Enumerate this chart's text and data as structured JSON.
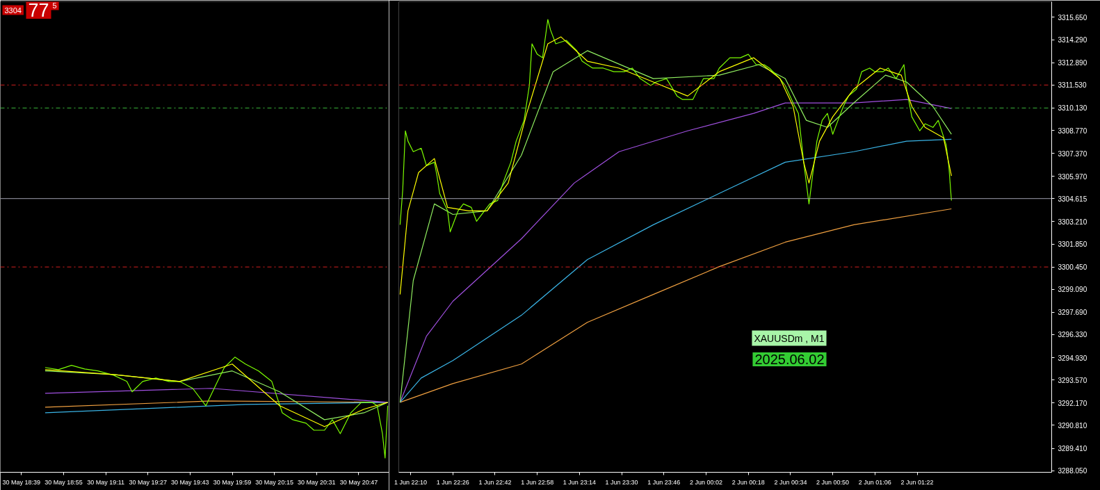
{
  "chart_data": [
    {
      "type": "line",
      "tick_labels": "x",
      "annotations": [
        "3304",
        "77",
        "5"
      ],
      "xlim": [
        "2025-05-30T18:31",
        "2025-05-30T20:58:30"
      ],
      "ylim": [
        3287.95,
        3316.6
      ],
      "xticks": [
        {
          "value": "2025-05-30T18:39",
          "label": "30 May 18:39"
        },
        {
          "value": "2025-05-30T18:55",
          "label": "30 May 18:55"
        },
        {
          "value": "2025-05-30T19:11",
          "label": "30 May 19:11"
        },
        {
          "value": "2025-05-30T19:27",
          "label": "30 May 19:27"
        },
        {
          "value": "2025-05-30T19:43",
          "label": "30 May 19:43"
        },
        {
          "value": "2025-05-30T19:59",
          "label": "30 May 19:59"
        },
        {
          "value": "2025-05-30T20:15",
          "label": "30 May 20:15"
        },
        {
          "value": "2025-05-30T20:31",
          "label": "30 May 20:31"
        },
        {
          "value": "2025-05-30T20:47",
          "label": "30 May 20:47"
        }
      ],
      "ref_lines": [
        {
          "axis": "y",
          "value": 3311.53,
          "color": "#d42020",
          "line_style": "dashdot"
        },
        {
          "axis": "y",
          "value": 3310.13,
          "color": "#3cb83c",
          "line_style": "dashdot"
        },
        {
          "axis": "y",
          "value": 3300.45,
          "color": "#d42020",
          "line_style": "dashdot"
        },
        {
          "axis": "y",
          "value": 3304.615,
          "color": "#a0a0b0",
          "line_style": "solid"
        }
      ],
      "line_style": "solid",
      "marker": "none",
      "series": [
        {
          "color": "#f0a040",
          "x": [
            "2025-05-30T18:48",
            "2025-05-30T19:51",
            "2025-05-30T20:58"
          ],
          "values": [
            3291.91,
            3292.29,
            3292.21
          ]
        },
        {
          "color": "#3ab4e6",
          "x": [
            "2025-05-30T18:48",
            "2025-05-30T20:04",
            "2025-05-30T20:58"
          ],
          "values": [
            3291.57,
            3292.08,
            3292.21
          ]
        },
        {
          "color": "#a050e0",
          "x": [
            "2025-05-30T18:48",
            "2025-05-30T19:51",
            "2025-05-30T20:58"
          ],
          "values": [
            3292.76,
            3293.06,
            3292.21
          ]
        },
        {
          "color": "#90ee60",
          "x": [
            "2025-05-30T18:48",
            "2025-05-30T19:14",
            "2025-05-30T19:39",
            "2025-05-30T19:59",
            "2025-05-30T20:17",
            "2025-05-30T20:34",
            "2025-05-30T20:49",
            "2025-05-30T20:58"
          ],
          "values": [
            3294.12,
            3293.9,
            3293.48,
            3294.12,
            3292.85,
            3291.15,
            3291.57,
            3292.21
          ]
        },
        {
          "color": "#7cfc00",
          "x": [
            "2025-05-30T18:48",
            "2025-05-30T18:53",
            "2025-05-30T18:58",
            "2025-05-30T19:03",
            "2025-05-30T19:08",
            "2025-05-30T19:14",
            "2025-05-30T19:19",
            "2025-05-30T19:21",
            "2025-05-30T19:25",
            "2025-05-30T19:30",
            "2025-05-30T19:35",
            "2025-05-30T19:39",
            "2025-05-30T19:44",
            "2025-05-30T19:49",
            "2025-05-30T19:53",
            "2025-05-30T19:56",
            "2025-05-30T20:00",
            "2025-05-30T20:04",
            "2025-05-30T20:09",
            "2025-05-30T20:14",
            "2025-05-30T20:18",
            "2025-05-30T20:22",
            "2025-05-30T20:27",
            "2025-05-30T20:30",
            "2025-05-30T20:34",
            "2025-05-30T20:37",
            "2025-05-30T20:40",
            "2025-05-30T20:44",
            "2025-05-30T20:48",
            "2025-05-30T20:52",
            "2025-05-30T20:54",
            "2025-05-30T20:56",
            "2025-05-30T20:57",
            "2025-05-30T20:58"
          ],
          "values": [
            3294.33,
            3294.2,
            3294.46,
            3294.24,
            3294.12,
            3293.86,
            3293.48,
            3292.85,
            3293.48,
            3293.69,
            3293.48,
            3293.48,
            3293.06,
            3292.0,
            3293.35,
            3294.33,
            3294.96,
            3294.54,
            3294.12,
            3293.48,
            3291.57,
            3291.15,
            3290.94,
            3290.51,
            3290.51,
            3291.15,
            3290.3,
            3291.57,
            3292.21,
            3292.21,
            3292.0,
            3290.3,
            3288.82,
            3292.0
          ]
        },
        {
          "color": "#ffff00",
          "x": [
            "2025-05-30T18:48",
            "2025-05-30T19:14",
            "2025-05-30T19:39",
            "2025-05-30T19:59",
            "2025-05-30T20:17",
            "2025-05-30T20:34",
            "2025-05-30T20:49",
            "2025-05-30T20:58"
          ],
          "values": [
            3294.2,
            3293.9,
            3293.48,
            3294.54,
            3292.0,
            3290.73,
            3291.79,
            3292.21
          ]
        }
      ]
    },
    {
      "type": "line",
      "annotations": [
        "XAUUSDm , M1",
        "2025.06.02"
      ],
      "xlim": [
        "2025-06-01T22:05:30",
        "2025-06-02T02:13"
      ],
      "ylim": [
        3287.95,
        3316.6
      ],
      "xticks": [
        {
          "value": "2025-06-01T22:10",
          "label": "1 Jun 22:10"
        },
        {
          "value": "2025-06-01T22:26",
          "label": "1 Jun 22:26"
        },
        {
          "value": "2025-06-01T22:42",
          "label": "1 Jun 22:42"
        },
        {
          "value": "2025-06-01T22:58",
          "label": "1 Jun 22:58"
        },
        {
          "value": "2025-06-01T23:14",
          "label": "1 Jun 23:14"
        },
        {
          "value": "2025-06-01T23:30",
          "label": "1 Jun 23:30"
        },
        {
          "value": "2025-06-01T23:46",
          "label": "1 Jun 23:46"
        },
        {
          "value": "2025-06-02T00:02",
          "label": "2 Jun 00:02"
        },
        {
          "value": "2025-06-02T00:18",
          "label": "2 Jun 00:18"
        },
        {
          "value": "2025-06-02T00:34",
          "label": "2 Jun 00:34"
        },
        {
          "value": "2025-06-02T00:50",
          "label": "2 Jun 00:50"
        },
        {
          "value": "2025-06-02T01:06",
          "label": "2 Jun 01:06"
        },
        {
          "value": "2025-06-02T01:22",
          "label": "2 Jun 01:22"
        }
      ],
      "yticks": [
        {
          "value": 3315.65,
          "label": "3315.650"
        },
        {
          "value": 3314.29,
          "label": "3314.290"
        },
        {
          "value": 3312.89,
          "label": "3312.890"
        },
        {
          "value": 3311.53,
          "label": "3311.530"
        },
        {
          "value": 3310.13,
          "label": "3310.130"
        },
        {
          "value": 3308.77,
          "label": "3308.770"
        },
        {
          "value": 3307.37,
          "label": "3307.370"
        },
        {
          "value": 3305.97,
          "label": "3305.970"
        },
        {
          "value": 3303.21,
          "label": "3303.210"
        },
        {
          "value": 3301.85,
          "label": "3301.850"
        },
        {
          "value": 3300.45,
          "label": "3300.450"
        },
        {
          "value": 3299.09,
          "label": "3299.090"
        },
        {
          "value": 3297.69,
          "label": "3297.690"
        },
        {
          "value": 3296.33,
          "label": "3296.330"
        },
        {
          "value": 3294.93,
          "label": "3294.930"
        },
        {
          "value": 3293.57,
          "label": "3293.570"
        },
        {
          "value": 3292.17,
          "label": "3292.170"
        },
        {
          "value": 3290.81,
          "label": "3290.810"
        },
        {
          "value": 3289.41,
          "label": "3289.410"
        },
        {
          "value": 3288.05,
          "label": "3288.050"
        }
      ],
      "ref_lines": [
        {
          "axis": "y",
          "value": 3311.53,
          "color": "#d42020",
          "line_style": "dashdot"
        },
        {
          "axis": "y",
          "value": 3310.13,
          "color": "#3cb83c",
          "line_style": "dashdot"
        },
        {
          "axis": "y",
          "value": 3300.45,
          "color": "#d42020",
          "line_style": "dashdot"
        },
        {
          "axis": "y",
          "value": 3304.615,
          "label": "3304.615",
          "color": "#a0a0b0",
          "line_style": "solid"
        }
      ],
      "line_style": "solid",
      "marker": "none",
      "series": [
        {
          "color": "#f0a040",
          "x": [
            "2025-06-01T22:06",
            "2025-06-01T22:26",
            "2025-06-01T22:52",
            "2025-06-01T23:17",
            "2025-06-01T23:42",
            "2025-06-02T00:07",
            "2025-06-02T00:32",
            "2025-06-02T00:58",
            "2025-06-02T01:35"
          ],
          "values": [
            3292.21,
            3293.35,
            3294.54,
            3297.08,
            3298.78,
            3300.47,
            3301.96,
            3303.02,
            3303.99
          ]
        },
        {
          "color": "#3ab4e6",
          "x": [
            "2025-06-01T22:06",
            "2025-06-01T22:14",
            "2025-06-01T22:26",
            "2025-06-01T22:52",
            "2025-06-01T23:17",
            "2025-06-01T23:42",
            "2025-06-02T00:07",
            "2025-06-02T00:32",
            "2025-06-02T00:58",
            "2025-06-02T01:18",
            "2025-06-02T01:35"
          ],
          "values": [
            3292.21,
            3293.69,
            3294.75,
            3297.51,
            3300.9,
            3303.02,
            3304.93,
            3306.83,
            3307.47,
            3308.11,
            3308.23
          ]
        },
        {
          "color": "#a050e0",
          "x": [
            "2025-06-01T22:06",
            "2025-06-01T22:16",
            "2025-06-01T22:26",
            "2025-06-01T22:52",
            "2025-06-01T23:12",
            "2025-06-01T23:29",
            "2025-06-01T23:55",
            "2025-06-02T00:20",
            "2025-06-02T00:32",
            "2025-06-02T00:58",
            "2025-06-02T01:18",
            "2025-06-02T01:35"
          ],
          "values": [
            3292.21,
            3296.24,
            3298.36,
            3302.17,
            3305.56,
            3307.47,
            3308.74,
            3309.8,
            3310.44,
            3310.44,
            3310.65,
            3310.1
          ]
        },
        {
          "color": "#90ee60",
          "x": [
            "2025-06-01T22:06",
            "2025-06-01T22:11",
            "2025-06-01T22:19",
            "2025-06-01T22:26",
            "2025-06-01T22:39",
            "2025-06-01T22:52",
            "2025-06-01T23:04",
            "2025-06-01T23:17",
            "2025-06-01T23:42",
            "2025-06-02T00:07",
            "2025-06-02T00:22",
            "2025-06-02T00:32",
            "2025-06-02T00:40",
            "2025-06-02T00:48",
            "2025-06-02T00:58",
            "2025-06-02T01:10",
            "2025-06-02T01:18",
            "2025-06-02T01:28",
            "2025-06-02T01:35"
          ],
          "values": [
            3292.21,
            3299.63,
            3304.29,
            3303.65,
            3303.87,
            3307.26,
            3312.34,
            3313.62,
            3311.92,
            3312.13,
            3312.77,
            3311.92,
            3309.38,
            3308.95,
            3310.44,
            3312.13,
            3311.71,
            3310.22,
            3308.53
          ]
        },
        {
          "color": "#7cfc00",
          "x": [
            "2025-06-01T22:06",
            "2025-06-01T22:07",
            "2025-06-01T22:08",
            "2025-06-01T22:09",
            "2025-06-01T22:11",
            "2025-06-01T22:14",
            "2025-06-01T22:16",
            "2025-06-01T22:19",
            "2025-06-01T22:20",
            "2025-06-01T22:21",
            "2025-06-01T22:24",
            "2025-06-01T22:25",
            "2025-06-01T22:28",
            "2025-06-01T22:30",
            "2025-06-01T22:33",
            "2025-06-01T22:35",
            "2025-06-01T22:38",
            "2025-06-01T22:40",
            "2025-06-01T22:43",
            "2025-06-01T22:45",
            "2025-06-01T22:48",
            "2025-06-01T22:50",
            "2025-06-01T22:53",
            "2025-06-01T22:55",
            "2025-06-01T22:56",
            "2025-06-01T22:58",
            "2025-06-01T23:00",
            "2025-06-01T23:02",
            "2025-06-01T23:03",
            "2025-06-01T23:05",
            "2025-06-01T23:09",
            "2025-06-01T23:13",
            "2025-06-01T23:15",
            "2025-06-01T23:19",
            "2025-06-01T23:23",
            "2025-06-01T23:27",
            "2025-06-01T23:31",
            "2025-06-01T23:34",
            "2025-06-01T23:37",
            "2025-06-01T23:41",
            "2025-06-01T23:43",
            "2025-06-01T23:47",
            "2025-06-01T23:51",
            "2025-06-01T23:53",
            "2025-06-01T23:57",
            "2025-06-02T00:01",
            "2025-06-02T00:05",
            "2025-06-02T00:07",
            "2025-06-02T00:11",
            "2025-06-02T00:15",
            "2025-06-02T00:18",
            "2025-06-02T00:21",
            "2025-06-02T00:24",
            "2025-06-02T00:26",
            "2025-06-02T00:30",
            "2025-06-02T00:32",
            "2025-06-02T00:35",
            "2025-06-02T00:37",
            "2025-06-02T00:39",
            "2025-06-02T00:41",
            "2025-06-02T00:42",
            "2025-06-02T00:44",
            "2025-06-02T00:46",
            "2025-06-02T00:48",
            "2025-06-02T00:50",
            "2025-06-02T00:52",
            "2025-06-02T00:54",
            "2025-06-02T00:56",
            "2025-06-02T00:59",
            "2025-06-02T01:01",
            "2025-06-02T01:04",
            "2025-06-02T01:06",
            "2025-06-02T01:09",
            "2025-06-02T01:11",
            "2025-06-02T01:14",
            "2025-06-02T01:17",
            "2025-06-02T01:18",
            "2025-06-02T01:20",
            "2025-06-02T01:23",
            "2025-06-02T01:25",
            "2025-06-02T01:28",
            "2025-06-02T01:30",
            "2025-06-02T01:33",
            "2025-06-02T01:34",
            "2025-06-02T01:35"
          ],
          "values": [
            3303.02,
            3305.14,
            3308.74,
            3308.11,
            3307.47,
            3307.68,
            3306.62,
            3306.83,
            3305.99,
            3304.93,
            3303.87,
            3302.59,
            3303.87,
            3304.29,
            3304.08,
            3303.23,
            3303.87,
            3304.29,
            3304.5,
            3305.56,
            3306.83,
            3308.11,
            3309.38,
            3311.5,
            3314.04,
            3313.4,
            3313.19,
            3315.52,
            3314.89,
            3314.04,
            3314.25,
            3313.62,
            3312.98,
            3312.56,
            3312.56,
            3312.34,
            3312.34,
            3312.56,
            3311.92,
            3311.5,
            3311.71,
            3311.92,
            3310.86,
            3310.65,
            3310.65,
            3311.92,
            3311.92,
            3312.56,
            3313.19,
            3313.19,
            3313.4,
            3312.77,
            3312.77,
            3312.56,
            3311.92,
            3311.5,
            3310.44,
            3309.8,
            3306.83,
            3304.29,
            3305.56,
            3308.11,
            3309.38,
            3309.8,
            3308.53,
            3309.38,
            3310.22,
            3310.86,
            3311.28,
            3312.34,
            3312.56,
            3312.34,
            3312.34,
            3312.56,
            3311.92,
            3312.77,
            3311.28,
            3309.59,
            3308.74,
            3309.17,
            3308.95,
            3309.38,
            3307.89,
            3306.62,
            3304.5
          ]
        },
        {
          "color": "#ffff00",
          "x": [
            "2025-06-01T22:06",
            "2025-06-01T22:09",
            "2025-06-01T22:13",
            "2025-06-01T22:19",
            "2025-06-01T22:24",
            "2025-06-01T22:32",
            "2025-06-01T22:39",
            "2025-06-01T22:47",
            "2025-06-01T22:54",
            "2025-06-01T23:02",
            "2025-06-01T23:07",
            "2025-06-01T23:17",
            "2025-06-01T23:29",
            "2025-06-01T23:42",
            "2025-06-01T23:55",
            "2025-06-02T00:07",
            "2025-06-02T00:20",
            "2025-06-02T00:30",
            "2025-06-02T00:35",
            "2025-06-02T00:39",
            "2025-06-02T00:41",
            "2025-06-02T00:45",
            "2025-06-02T00:50",
            "2025-06-02T00:58",
            "2025-06-02T01:08",
            "2025-06-02T01:16",
            "2025-06-02T01:20",
            "2025-06-02T01:25",
            "2025-06-02T01:32",
            "2025-06-02T01:35"
          ],
          "values": [
            3298.78,
            3303.87,
            3306.2,
            3307.05,
            3304.08,
            3303.87,
            3303.87,
            3305.56,
            3309.8,
            3314.04,
            3314.46,
            3312.98,
            3312.56,
            3311.71,
            3310.86,
            3312.34,
            3313.19,
            3311.92,
            3310.22,
            3306.83,
            3305.56,
            3308.11,
            3309.59,
            3311.28,
            3312.56,
            3312.13,
            3310.22,
            3308.95,
            3308.32,
            3305.99
          ]
        }
      ]
    }
  ]
}
